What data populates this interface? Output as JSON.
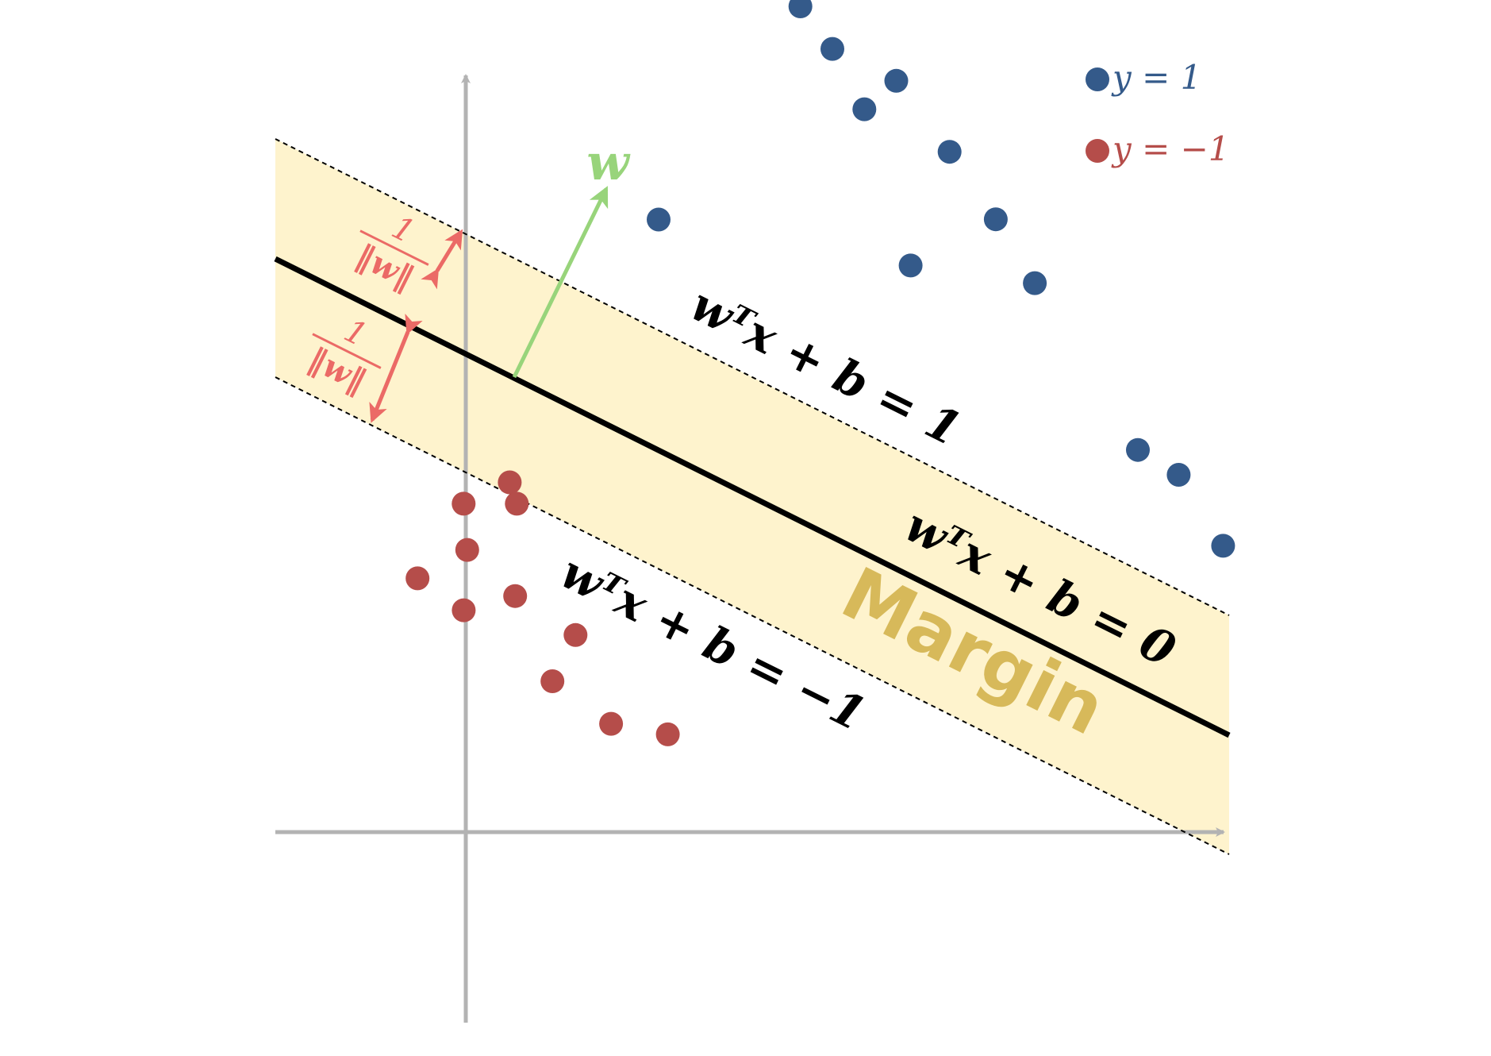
{
  "colors": {
    "positive": "#345a8a",
    "negative": "#b54d4a",
    "margin_fill": "#fef3cd",
    "margin_text": "#d7b95a",
    "axis": "#b3b3b3",
    "normal": "#98d47b",
    "distance": "#eb6a66",
    "line": "#000000"
  },
  "legend": {
    "positive_label": "y = 1",
    "negative_label": "y = −1"
  },
  "labels": {
    "margin": "Margin",
    "normal_vector": "w",
    "upper_boundary": "wᵀx + b = 1",
    "decision_boundary": "wᵀx + b = 0",
    "lower_boundary": "wᵀx + b = −1",
    "distance_top_num": "1",
    "distance_top_den": "‖w‖",
    "distance_bottom_num": "1",
    "distance_bottom_den": "‖w‖"
  },
  "positive_points": [
    [
      4.1,
      2.6
    ],
    [
      4.5,
      5.8
    ],
    [
      5.1,
      5.5
    ],
    [
      5.8,
      5.0
    ],
    [
      6.0,
      5.5
    ],
    [
      7.0,
      5.0
    ],
    [
      7.2,
      3.5
    ],
    [
      7.9,
      4.5
    ],
    [
      8.7,
      4.0
    ],
    [
      10.8,
      2.7
    ],
    [
      11.4,
      2.65
    ],
    [
      12.3,
      2.1
    ]
  ],
  "negative_points": [
    [
      3.9,
      -1.2
    ],
    [
      3.5,
      -1.7
    ],
    [
      4.1,
      -1.4
    ],
    [
      3.8,
      -2.2
    ],
    [
      4.1,
      -2.9
    ],
    [
      3.4,
      -2.8
    ],
    [
      4.6,
      -2.45
    ],
    [
      5.5,
      -2.55
    ],
    [
      5.5,
      -3.2
    ],
    [
      6.4,
      -3.35
    ],
    [
      7.1,
      -3.15
    ]
  ]
}
